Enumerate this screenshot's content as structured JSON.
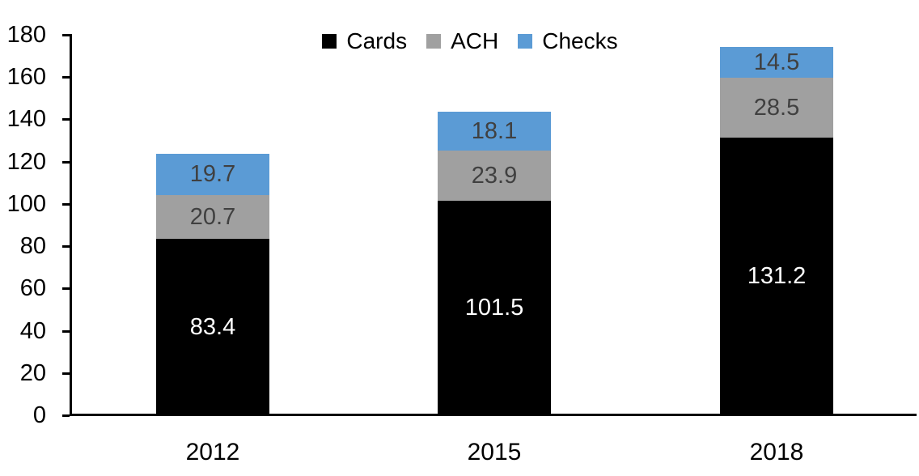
{
  "background": "#ffffff",
  "axis_color": "#000000",
  "chart_data": {
    "type": "bar",
    "stacked": true,
    "title": "",
    "xlabel": "",
    "ylabel": "",
    "categories": [
      "2012",
      "2015",
      "2018"
    ],
    "series": [
      {
        "name": "Cards",
        "color": "#000000",
        "label_color": "#ffffff",
        "values": [
          83.4,
          101.5,
          131.2
        ]
      },
      {
        "name": "ACH",
        "color": "#a0a0a0",
        "label_color": "#404040",
        "values": [
          20.7,
          23.9,
          28.5
        ]
      },
      {
        "name": "Checks",
        "color": "#5b9bd5",
        "label_color": "#404040",
        "values": [
          19.7,
          18.1,
          14.5
        ]
      }
    ],
    "ylim": [
      0,
      180
    ],
    "ytick_step": 20,
    "grid": false,
    "legend_position": "top-center",
    "value_labels_shown": true
  }
}
